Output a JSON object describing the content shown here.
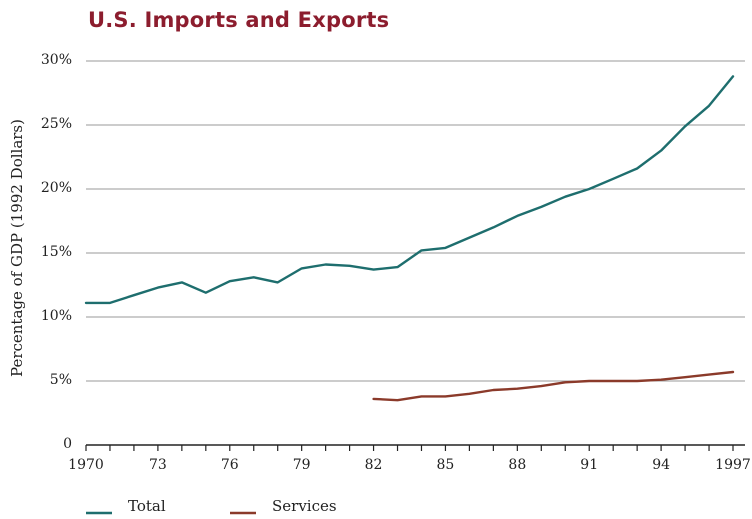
{
  "chart_data": {
    "type": "line",
    "title": "U.S. Imports and Exports",
    "ylabel": "Percentage of GDP (1992 Dollars)",
    "xlim": [
      1970,
      1997
    ],
    "ylim": [
      0,
      30
    ],
    "y_ticks": [
      {
        "value": 0,
        "label": "0"
      },
      {
        "value": 5,
        "label": "5%"
      },
      {
        "value": 10,
        "label": "10%"
      },
      {
        "value": 15,
        "label": "15%"
      },
      {
        "value": 20,
        "label": "20%"
      },
      {
        "value": 25,
        "label": "25%"
      },
      {
        "value": 30,
        "label": "30%"
      }
    ],
    "x_ticks": [
      {
        "value": 1970,
        "label": "1970"
      },
      {
        "value": 1973,
        "label": "73"
      },
      {
        "value": 1976,
        "label": "76"
      },
      {
        "value": 1979,
        "label": "79"
      },
      {
        "value": 1982,
        "label": "82"
      },
      {
        "value": 1985,
        "label": "85"
      },
      {
        "value": 1988,
        "label": "88"
      },
      {
        "value": 1991,
        "label": "91"
      },
      {
        "value": 1994,
        "label": "94"
      },
      {
        "value": 1997,
        "label": "1997"
      }
    ],
    "grid": true,
    "legend_position": "bottom",
    "series": [
      {
        "name": "Total",
        "color": "#1e6e6e",
        "x": [
          1970,
          1971,
          1972,
          1973,
          1974,
          1975,
          1976,
          1977,
          1978,
          1979,
          1980,
          1981,
          1982,
          1983,
          1984,
          1985,
          1986,
          1987,
          1988,
          1989,
          1990,
          1991,
          1992,
          1993,
          1994,
          1995,
          1996,
          1997
        ],
        "values": [
          11.1,
          11.1,
          11.7,
          12.3,
          12.7,
          11.9,
          12.8,
          13.1,
          12.7,
          13.8,
          14.1,
          14.0,
          13.7,
          13.9,
          15.2,
          15.4,
          16.2,
          17.0,
          17.9,
          18.6,
          19.4,
          20.0,
          20.8,
          21.6,
          23.0,
          24.9,
          26.5,
          28.8
        ]
      },
      {
        "name": "Services",
        "color": "#8b3a2a",
        "x": [
          1982,
          1983,
          1984,
          1985,
          1986,
          1987,
          1988,
          1989,
          1990,
          1991,
          1992,
          1993,
          1994,
          1995,
          1996,
          1997
        ],
        "values": [
          3.6,
          3.5,
          3.8,
          3.8,
          4.0,
          4.3,
          4.4,
          4.6,
          4.9,
          5.0,
          5.0,
          5.0,
          5.1,
          5.3,
          5.5,
          5.7
        ]
      }
    ]
  }
}
